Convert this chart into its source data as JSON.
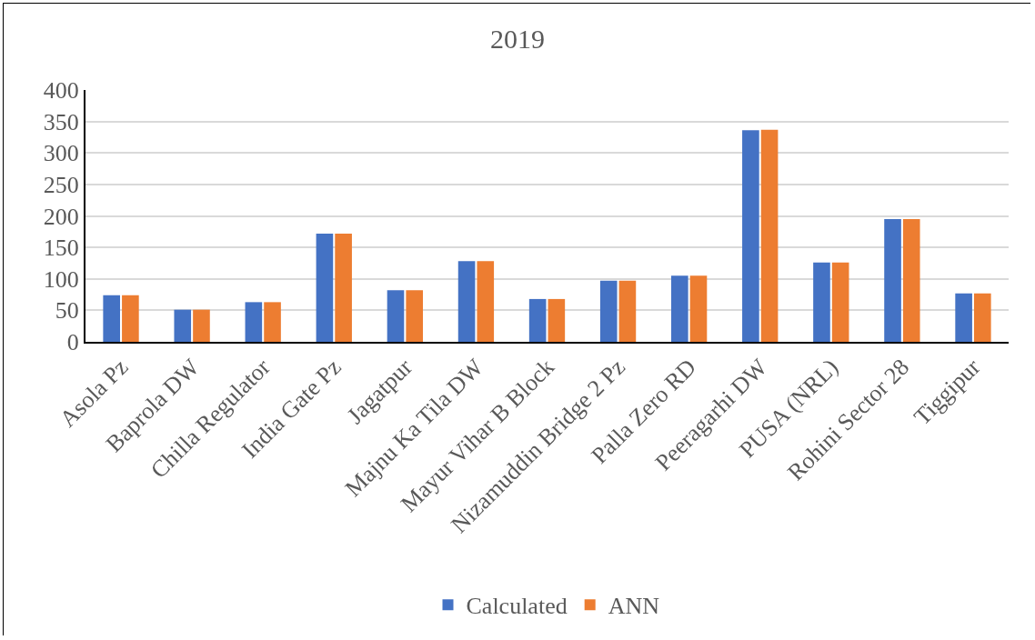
{
  "chart_data": {
    "type": "bar",
    "title": "2019",
    "categories": [
      "Asola Pz",
      "Baprola DW",
      "Chilla Regulator",
      "India Gate Pz",
      "Jagatpur",
      "Majnu Ka Tila DW",
      "Mayur Vihar B Block",
      "Nizamuddin Bridge 2 Pz",
      "Palla Zero RD",
      "Peeragarhi DW",
      "PUSA (NRL)",
      "Rohini Sector 28",
      "Tiggipur"
    ],
    "series": [
      {
        "name": "Calculated",
        "color": "#4472c4",
        "values": [
          74,
          51,
          63,
          172,
          82,
          128,
          68,
          97,
          105,
          336,
          126,
          195,
          77
        ]
      },
      {
        "name": "ANN",
        "color": "#ed7d31",
        "values": [
          74,
          51,
          63,
          172,
          82,
          128,
          68,
          97,
          105,
          337,
          126,
          195,
          77
        ]
      }
    ],
    "ylim": [
      0,
      400
    ],
    "yticks": [
      0,
      50,
      100,
      150,
      200,
      250,
      300,
      350,
      400
    ],
    "grid": "y",
    "legend": "bottom"
  }
}
